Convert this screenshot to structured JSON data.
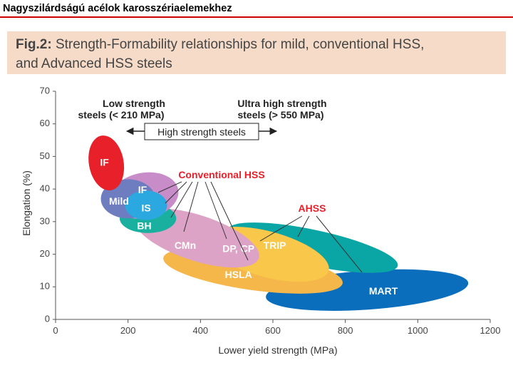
{
  "slide": {
    "title": "Nagyszilárdságú acélok karosszériaelemekhez"
  },
  "figure": {
    "label": "Fig.2:",
    "caption_line1": "Strength-Formability relationships for mild, conventional HSS,",
    "caption_line2": "and Advanced HSS steels"
  },
  "chart_data": {
    "type": "scatter",
    "title": "",
    "xlabel": "Lower yield strength (MPa)",
    "ylabel": "Elongation (%)",
    "xlim": [
      0,
      1200
    ],
    "ylim": [
      0,
      70
    ],
    "xticks": [
      "0",
      "200",
      "400",
      "600",
      "800",
      "1000",
      "1200"
    ],
    "yticks": [
      "0",
      "10",
      "20",
      "30",
      "40",
      "50",
      "60",
      "70"
    ],
    "grid": false,
    "regions": [
      {
        "name": "MART",
        "color": "#0a6ebd",
        "x_center": 860,
        "y_center": 9,
        "x_half": 280,
        "y_half": 6,
        "angle_deg": -4,
        "label_x": 905,
        "label_y": 8.5,
        "label_color": "#ffffff"
      },
      {
        "name": "TRIP",
        "color": "#0aa5a5",
        "x_center": 710,
        "y_center": 22,
        "x_half": 240,
        "y_half": 5.5,
        "angle_deg": 12,
        "label_x": 605,
        "label_y": 22.5,
        "label_color": "#ffffff"
      },
      {
        "name": "HSLA",
        "color": "#f5b74a",
        "x_center": 545,
        "y_center": 15,
        "x_half": 250,
        "y_half": 6,
        "angle_deg": 8,
        "label_x": 505,
        "label_y": 13.5,
        "label_color": "#ffffff"
      },
      {
        "name": "DP, CP",
        "color": "#f9c74a",
        "x_center": 585,
        "y_center": 20,
        "x_half": 175,
        "y_half": 7,
        "angle_deg": 15,
        "label_x": 505,
        "label_y": 21.5,
        "label_color": "#ffffff"
      },
      {
        "name": "CMn",
        "color": "#dca3c6",
        "x_center": 390,
        "y_center": 25,
        "x_half": 180,
        "y_half": 7,
        "angle_deg": 18,
        "label_x": 358,
        "label_y": 22.5,
        "label_color": "#ffffff"
      },
      {
        "name": "BH",
        "color": "#1ab0a0",
        "x_center": 255,
        "y_center": 31,
        "x_half": 78,
        "y_half": 4.5,
        "angle_deg": 0,
        "label_x": 245,
        "label_y": 28.5,
        "label_color": "#ffffff"
      },
      {
        "name": "IF",
        "color": "#c88cc8",
        "x_center": 245,
        "y_center": 38,
        "x_half": 95,
        "y_half": 7,
        "angle_deg": -10,
        "label_x": 240,
        "label_y": 39.5,
        "label_color": "#ffffff"
      },
      {
        "name": "Mild",
        "color": "#6e7dc0",
        "x_center": 200,
        "y_center": 37,
        "x_half": 75,
        "y_half": 6,
        "angle_deg": 0,
        "label_x": 175,
        "label_y": 36,
        "label_color": "#ffffff"
      },
      {
        "name": "IS",
        "color": "#2ca8e0",
        "x_center": 250,
        "y_center": 35,
        "x_half": 58,
        "y_half": 4.5,
        "angle_deg": 0,
        "label_x": 250,
        "label_y": 34,
        "label_color": "#ffffff"
      },
      {
        "name": "IF",
        "color": "#e8202a",
        "x_center": 140,
        "y_center": 48,
        "x_half": 48,
        "y_half": 8.5,
        "angle_deg": -10,
        "label_x": 135,
        "label_y": 48,
        "label_color": "#ffffff"
      }
    ],
    "annotations": [
      {
        "text": "Conventional HSS",
        "color": "#e8202a"
      },
      {
        "text": "AHSS",
        "color": "#e8202a"
      },
      {
        "text": "Low strength",
        "color": "#222222"
      },
      {
        "text": "steels (< 210 MPa)",
        "color": "#222222"
      },
      {
        "text": "Ultra high strength",
        "color": "#222222"
      },
      {
        "text": "steels (> 550 MPa)",
        "color": "#222222"
      },
      {
        "text": "High strength steels",
        "color": "#222222"
      }
    ]
  }
}
